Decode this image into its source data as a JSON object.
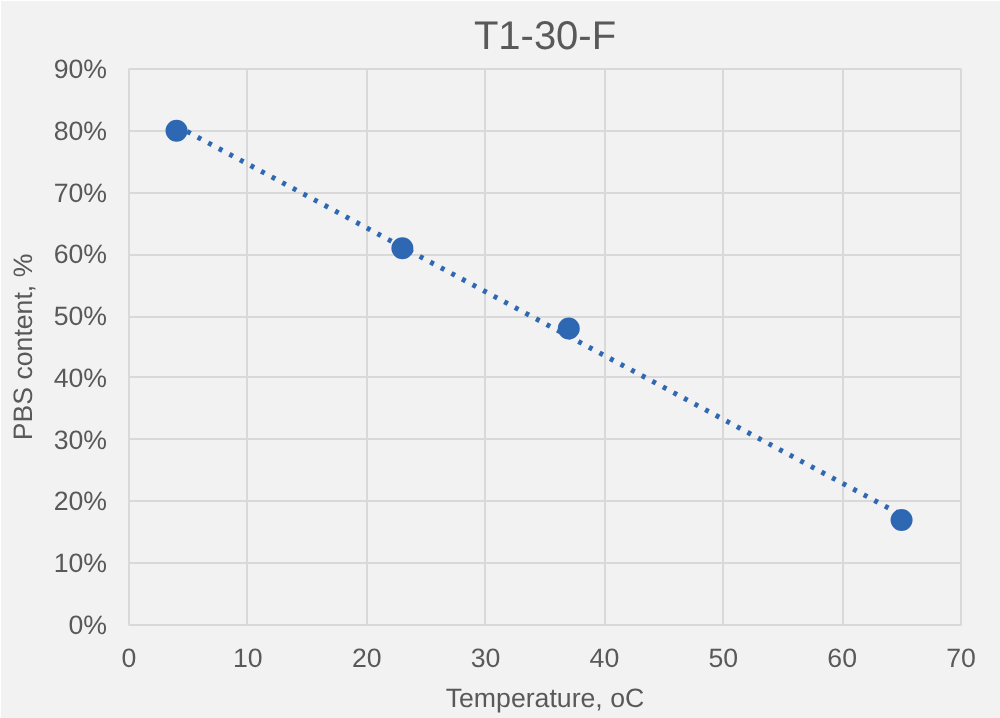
{
  "chart_data": {
    "type": "scatter",
    "title": "T1-30-F",
    "xlabel": "Temperature, oC",
    "ylabel": "PBS content, %",
    "x": [
      4,
      23,
      37,
      65
    ],
    "series": [
      {
        "color": "#2e67b2",
        "values": [
          80,
          61,
          48,
          17
        ]
      },
      {
        "type": "line",
        "color": "#2e67b2",
        "x": [
          4,
          65
        ],
        "values": [
          80.8,
          17.8
        ],
        "line_style": "dotted",
        "marker": "none"
      }
    ],
    "marker": "circle",
    "xlim": [
      0,
      70
    ],
    "xticks": [
      0,
      10,
      20,
      30,
      40,
      50,
      60,
      70
    ],
    "ylim": [
      0,
      90
    ],
    "yticks": [
      {
        "value": 0,
        "label": "0%"
      },
      {
        "value": 10,
        "label": "10%"
      },
      {
        "value": 20,
        "label": "20%"
      },
      {
        "value": 30,
        "label": "30%"
      },
      {
        "value": 40,
        "label": "40%"
      },
      {
        "value": 50,
        "label": "50%"
      },
      {
        "value": 60,
        "label": "60%"
      },
      {
        "value": 70,
        "label": "70%"
      },
      {
        "value": 80,
        "label": "80%"
      },
      {
        "value": 90,
        "label": "90%"
      }
    ],
    "grid": true
  }
}
